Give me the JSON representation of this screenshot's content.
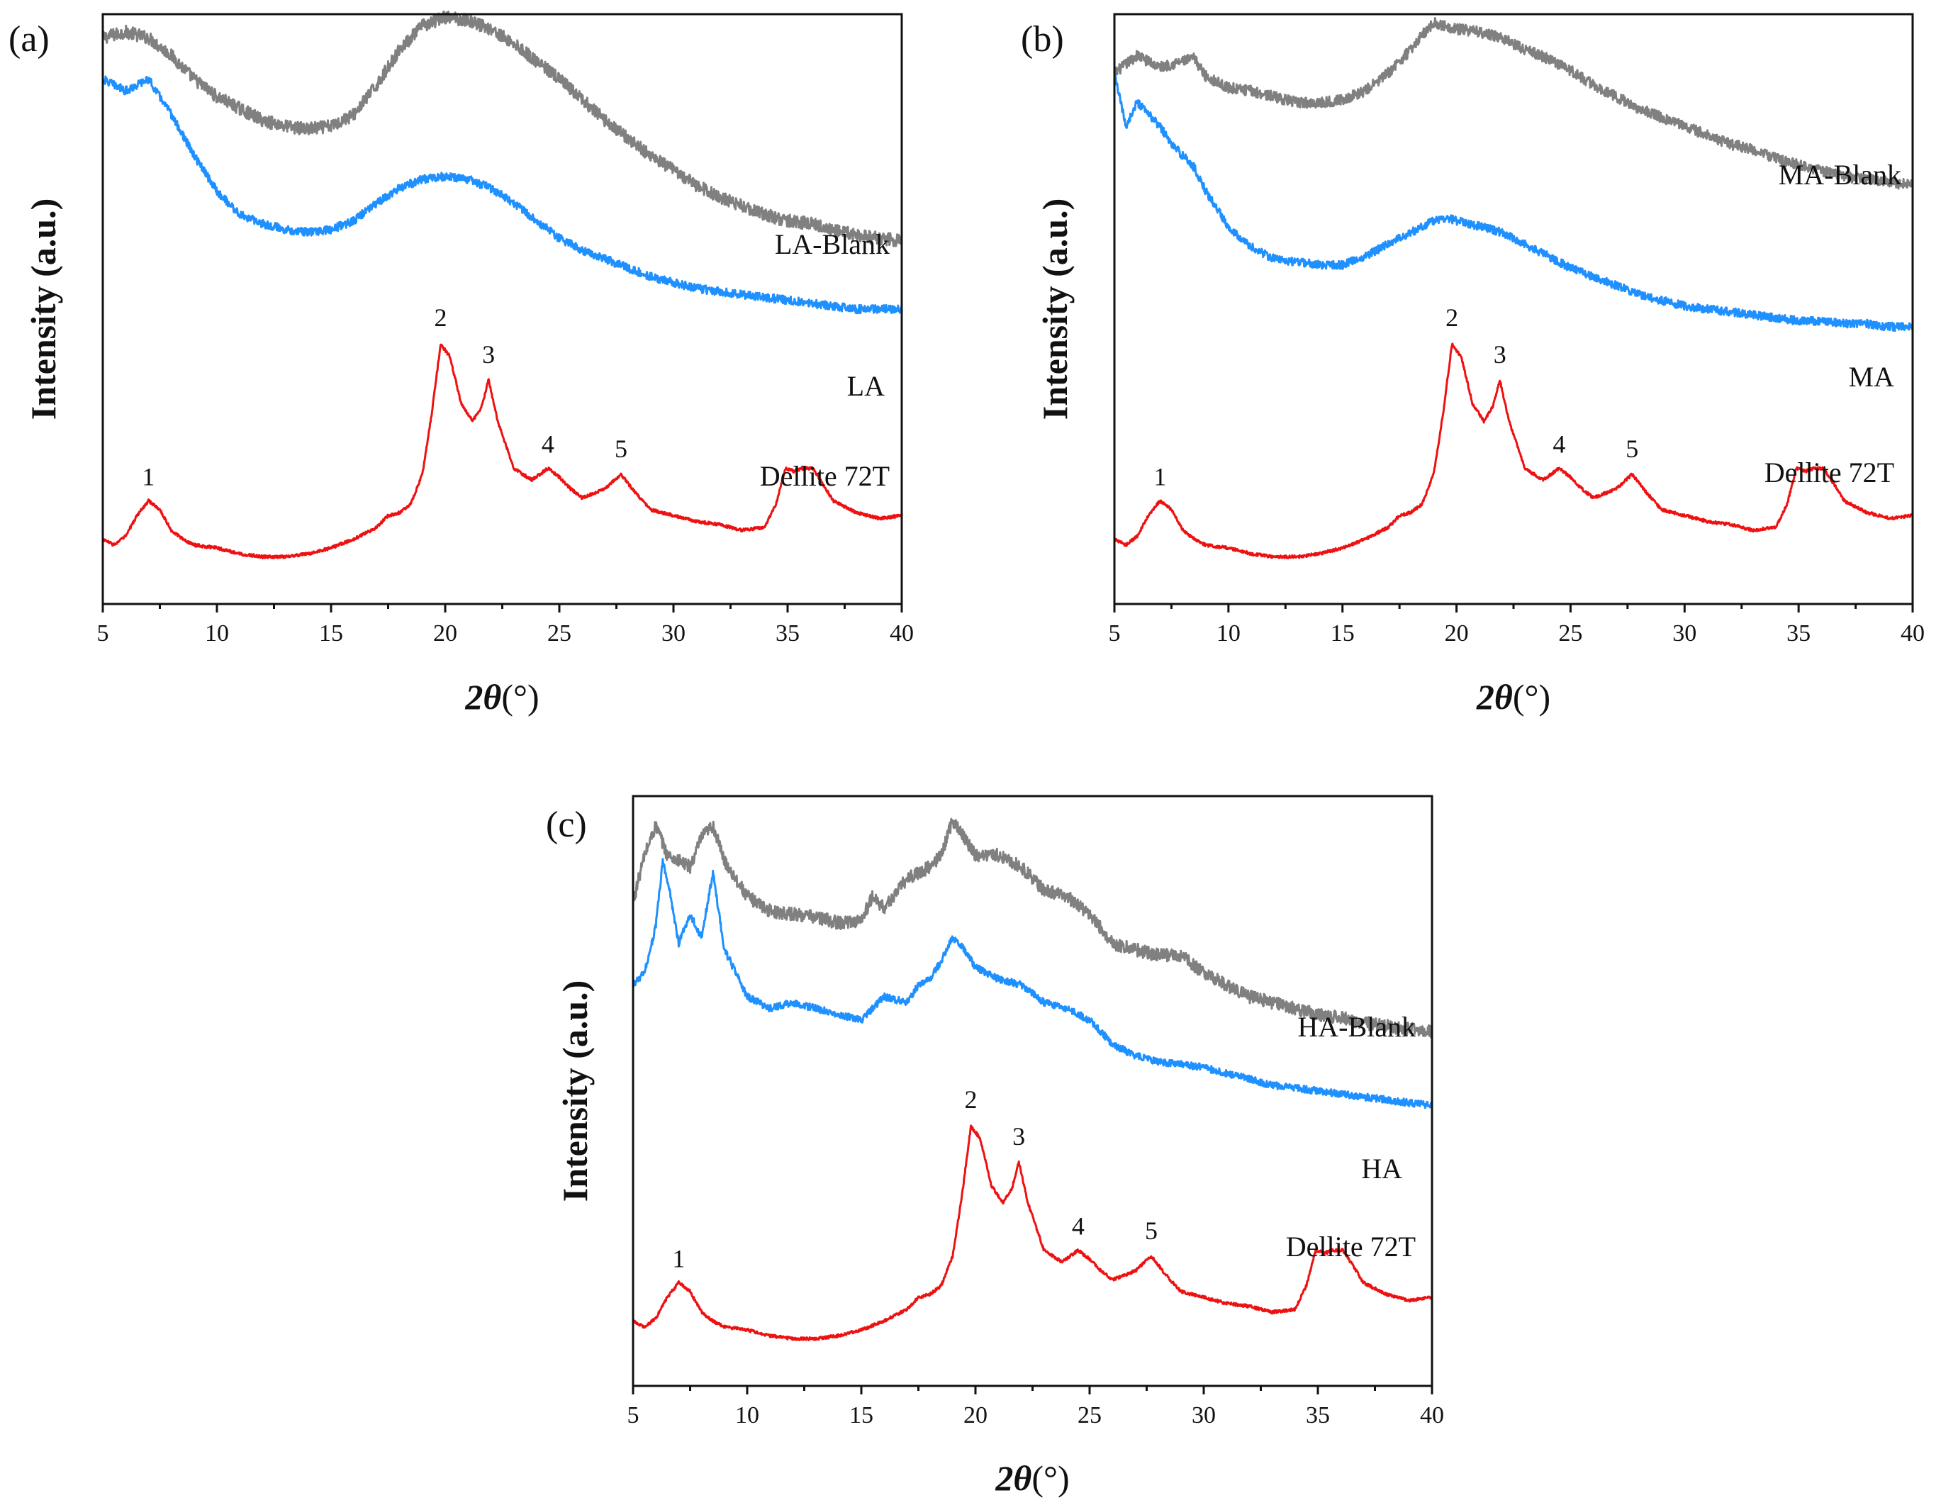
{
  "figure": {
    "colors": {
      "blank": "#808080",
      "sample": "#1E90FF",
      "reference": "#EE1111"
    }
  },
  "chart_data": [
    {
      "type": "line",
      "panel_label": "(a)",
      "xlabel_main": "2θ",
      "xlabel_unit": "(°)",
      "ylabel": "Intensity (a.u.)",
      "xlim": [
        5,
        40
      ],
      "ylim": [
        0,
        10
      ],
      "xticks": [
        5,
        10,
        15,
        20,
        25,
        30,
        35,
        40
      ],
      "series": [
        {
          "name": "LA-Blank",
          "color_key": "blank",
          "noise": 0.22,
          "x": [
            5,
            6,
            7,
            8,
            9,
            10,
            11,
            12,
            13,
            14,
            15,
            16,
            17,
            18,
            19,
            20,
            21,
            22,
            23,
            24,
            25,
            26,
            27,
            28,
            29,
            30,
            31,
            32,
            33,
            34,
            35,
            36,
            37,
            38,
            39,
            40
          ],
          "y": [
            9.6,
            9.7,
            9.6,
            9.3,
            8.9,
            8.6,
            8.4,
            8.2,
            8.1,
            8.05,
            8.1,
            8.3,
            8.8,
            9.4,
            9.8,
            9.95,
            9.9,
            9.75,
            9.5,
            9.2,
            8.9,
            8.55,
            8.2,
            7.9,
            7.6,
            7.35,
            7.1,
            6.9,
            6.75,
            6.6,
            6.5,
            6.45,
            6.35,
            6.25,
            6.2,
            6.15
          ]
        },
        {
          "name": "LA",
          "color_key": "sample",
          "noise": 0.14,
          "x": [
            5,
            6,
            7,
            8,
            9,
            10,
            11,
            12,
            13,
            14,
            15,
            16,
            17,
            18,
            19,
            20,
            21,
            22,
            23,
            24,
            25,
            26,
            27,
            28,
            29,
            30,
            31,
            32,
            33,
            34,
            35,
            36,
            37,
            38,
            39,
            40
          ],
          "y": [
            8.9,
            8.7,
            8.9,
            8.3,
            7.6,
            7.0,
            6.6,
            6.45,
            6.35,
            6.3,
            6.35,
            6.5,
            6.8,
            7.05,
            7.2,
            7.25,
            7.2,
            7.05,
            6.8,
            6.5,
            6.2,
            6.0,
            5.85,
            5.7,
            5.55,
            5.45,
            5.35,
            5.3,
            5.25,
            5.2,
            5.15,
            5.1,
            5.05,
            5.0,
            5.0,
            5.0
          ]
        },
        {
          "name": "Dellite 72T",
          "color_key": "reference",
          "noise": 0.05,
          "x": [
            5,
            5.5,
            6,
            6.5,
            7,
            7.5,
            8,
            8.5,
            9,
            10,
            11,
            12,
            13,
            14,
            15,
            16,
            17,
            17.5,
            18,
            18.5,
            19,
            19.4,
            19.8,
            20.2,
            20.7,
            21.2,
            21.6,
            21.9,
            22.3,
            23,
            23.8,
            24.5,
            25,
            25.5,
            26,
            27,
            27.7,
            28.3,
            29,
            30,
            31,
            32,
            33,
            34,
            34.5,
            34.9,
            35.3,
            35.7,
            36.1,
            36.6,
            37,
            38,
            39,
            40
          ],
          "y": [
            1.1,
            1.0,
            1.15,
            1.5,
            1.75,
            1.6,
            1.25,
            1.1,
            1.0,
            0.95,
            0.85,
            0.8,
            0.8,
            0.85,
            0.95,
            1.1,
            1.3,
            1.5,
            1.55,
            1.7,
            2.2,
            3.2,
            4.4,
            4.2,
            3.4,
            3.1,
            3.35,
            3.8,
            3.1,
            2.3,
            2.1,
            2.3,
            2.15,
            1.95,
            1.8,
            1.95,
            2.2,
            1.9,
            1.6,
            1.5,
            1.4,
            1.35,
            1.25,
            1.3,
            1.7,
            2.3,
            2.25,
            2.3,
            2.3,
            2.0,
            1.75,
            1.55,
            1.45,
            1.5
          ]
        }
      ],
      "annotations": [
        {
          "text": "LA-Blank",
          "series": "LA-Blank"
        },
        {
          "text": "LA",
          "series": "LA"
        },
        {
          "text": "Dellite 72T",
          "series": "Dellite 72T"
        },
        {
          "text": "1",
          "x": 7.0
        },
        {
          "text": "2",
          "x": 19.8
        },
        {
          "text": "3",
          "x": 21.9
        },
        {
          "text": "4",
          "x": 24.5
        },
        {
          "text": "5",
          "x": 27.7
        }
      ]
    },
    {
      "type": "line",
      "panel_label": "(b)",
      "xlabel_main": "2θ",
      "xlabel_unit": "(°)",
      "ylabel": "Intensity (a.u.)",
      "xlim": [
        5,
        40
      ],
      "ylim": [
        0,
        10
      ],
      "xticks": [
        5,
        10,
        15,
        20,
        25,
        30,
        35,
        40
      ],
      "series": [
        {
          "name": "MA-Blank",
          "color_key": "blank",
          "noise": 0.18,
          "x": [
            5,
            6,
            7,
            8,
            8.5,
            9,
            10,
            11,
            12,
            13,
            14,
            15,
            16,
            17,
            18,
            18.5,
            19,
            20,
            21,
            22,
            23,
            24,
            25,
            26,
            27,
            28,
            29,
            30,
            31,
            32,
            33,
            34,
            35,
            36,
            37,
            38,
            39,
            40
          ],
          "y": [
            9.0,
            9.3,
            9.1,
            9.2,
            9.25,
            8.95,
            8.75,
            8.7,
            8.6,
            8.5,
            8.5,
            8.55,
            8.7,
            9.0,
            9.4,
            9.65,
            9.85,
            9.75,
            9.7,
            9.6,
            9.4,
            9.25,
            9.05,
            8.8,
            8.6,
            8.4,
            8.25,
            8.1,
            7.95,
            7.8,
            7.7,
            7.55,
            7.45,
            7.35,
            7.25,
            7.2,
            7.15,
            7.1
          ]
        },
        {
          "name": "MA",
          "color_key": "sample",
          "noise": 0.14,
          "x": [
            5,
            5.5,
            6,
            6.5,
            7,
            7.5,
            8,
            8.5,
            9,
            10,
            11,
            12,
            13,
            14,
            15,
            16,
            17,
            18,
            19,
            19.5,
            20,
            21,
            22,
            23,
            24,
            25,
            26,
            27,
            28,
            29,
            30,
            31,
            32,
            33,
            34,
            35,
            36,
            37,
            38,
            39,
            40
          ],
          "y": [
            9.0,
            8.1,
            8.5,
            8.3,
            8.1,
            7.8,
            7.6,
            7.4,
            7.0,
            6.4,
            6.05,
            5.85,
            5.8,
            5.75,
            5.75,
            5.9,
            6.1,
            6.3,
            6.5,
            6.55,
            6.5,
            6.4,
            6.3,
            6.1,
            5.9,
            5.7,
            5.55,
            5.4,
            5.25,
            5.15,
            5.05,
            5.0,
            4.95,
            4.9,
            4.85,
            4.8,
            4.8,
            4.75,
            4.75,
            4.7,
            4.7
          ]
        },
        {
          "name": "Dellite 72T",
          "color_key": "reference",
          "noise": 0.05,
          "x": [
            5,
            5.5,
            6,
            6.5,
            7,
            7.5,
            8,
            8.5,
            9,
            10,
            11,
            12,
            13,
            14,
            15,
            16,
            17,
            17.5,
            18,
            18.5,
            19,
            19.4,
            19.8,
            20.2,
            20.7,
            21.2,
            21.6,
            21.9,
            22.3,
            23,
            23.8,
            24.5,
            25,
            25.5,
            26,
            27,
            27.7,
            28.3,
            29,
            30,
            31,
            32,
            33,
            34,
            34.5,
            34.9,
            35.3,
            35.7,
            36.1,
            36.6,
            37,
            38,
            39,
            40
          ],
          "y": [
            1.1,
            1.0,
            1.15,
            1.5,
            1.75,
            1.6,
            1.25,
            1.1,
            1.0,
            0.95,
            0.85,
            0.8,
            0.8,
            0.85,
            0.95,
            1.1,
            1.3,
            1.5,
            1.55,
            1.7,
            2.2,
            3.2,
            4.4,
            4.2,
            3.4,
            3.1,
            3.35,
            3.8,
            3.1,
            2.3,
            2.1,
            2.3,
            2.15,
            1.95,
            1.8,
            1.95,
            2.2,
            1.9,
            1.6,
            1.5,
            1.4,
            1.35,
            1.25,
            1.3,
            1.7,
            2.3,
            2.25,
            2.3,
            2.3,
            2.0,
            1.75,
            1.55,
            1.45,
            1.5
          ]
        }
      ],
      "annotations": [
        {
          "text": "MA-Blank",
          "series": "MA-Blank"
        },
        {
          "text": "MA",
          "series": "MA"
        },
        {
          "text": "Dellite 72T",
          "series": "Dellite 72T"
        },
        {
          "text": "1",
          "x": 7.0
        },
        {
          "text": "2",
          "x": 19.8
        },
        {
          "text": "3",
          "x": 21.9
        },
        {
          "text": "4",
          "x": 24.5
        },
        {
          "text": "5",
          "x": 27.7
        }
      ]
    },
    {
      "type": "line",
      "panel_label": "(c)",
      "xlabel_main": "2θ",
      "xlabel_unit": "(°)",
      "ylabel": "Intensity (a.u.)",
      "xlim": [
        5,
        40
      ],
      "ylim": [
        0,
        10
      ],
      "xticks": [
        5,
        10,
        15,
        20,
        25,
        30,
        35,
        40
      ],
      "series": [
        {
          "name": "HA-Blank",
          "color_key": "blank",
          "noise": 0.22,
          "x": [
            5,
            5.5,
            6,
            6.5,
            7,
            7.5,
            8,
            8.5,
            9,
            10,
            11,
            12,
            13,
            14,
            15,
            15.5,
            16,
            17,
            18,
            18.5,
            19,
            19.5,
            20,
            21,
            22,
            23,
            24,
            25,
            26,
            27,
            28,
            29,
            30,
            31,
            32,
            33,
            34,
            35,
            36,
            37,
            38,
            39,
            40
          ],
          "y": [
            8.2,
            9.0,
            9.5,
            9.0,
            8.9,
            8.8,
            9.3,
            9.5,
            8.9,
            8.3,
            8.05,
            8.0,
            7.95,
            7.85,
            7.9,
            8.3,
            8.1,
            8.6,
            8.8,
            9.0,
            9.6,
            9.3,
            9.0,
            9.0,
            8.8,
            8.4,
            8.3,
            8.0,
            7.5,
            7.4,
            7.3,
            7.3,
            7.0,
            6.8,
            6.6,
            6.5,
            6.4,
            6.3,
            6.25,
            6.15,
            6.1,
            6.05,
            6.0
          ]
        },
        {
          "name": "HA",
          "color_key": "sample",
          "noise": 0.12,
          "x": [
            5,
            5.5,
            6,
            6.3,
            6.6,
            7,
            7.5,
            8,
            8.5,
            9,
            9.5,
            10,
            11,
            12,
            13,
            14,
            15,
            16,
            17,
            17.5,
            18,
            18.5,
            19,
            19.5,
            20,
            21,
            22,
            23,
            24,
            25,
            26,
            27,
            28,
            29,
            30,
            31,
            32,
            33,
            34,
            35,
            36,
            37,
            38,
            39,
            40
          ],
          "y": [
            6.8,
            7.0,
            7.8,
            8.9,
            8.4,
            7.5,
            8.0,
            7.6,
            8.7,
            7.4,
            7.0,
            6.6,
            6.4,
            6.5,
            6.4,
            6.3,
            6.2,
            6.6,
            6.5,
            6.8,
            6.9,
            7.2,
            7.6,
            7.4,
            7.1,
            6.9,
            6.8,
            6.5,
            6.4,
            6.2,
            5.8,
            5.6,
            5.5,
            5.45,
            5.4,
            5.3,
            5.2,
            5.1,
            5.05,
            5.0,
            4.95,
            4.9,
            4.85,
            4.8,
            4.75
          ]
        },
        {
          "name": "Dellite 72T",
          "color_key": "reference",
          "noise": 0.05,
          "x": [
            5,
            5.5,
            6,
            6.5,
            7,
            7.5,
            8,
            8.5,
            9,
            10,
            11,
            12,
            13,
            14,
            15,
            16,
            17,
            17.5,
            18,
            18.5,
            19,
            19.4,
            19.8,
            20.2,
            20.7,
            21.2,
            21.6,
            21.9,
            22.3,
            23,
            23.8,
            24.5,
            25,
            25.5,
            26,
            27,
            27.7,
            28.3,
            29,
            30,
            31,
            32,
            33,
            34,
            34.5,
            34.9,
            35.3,
            35.7,
            36.1,
            36.6,
            37,
            38,
            39,
            40
          ],
          "y": [
            1.1,
            1.0,
            1.15,
            1.5,
            1.75,
            1.6,
            1.25,
            1.1,
            1.0,
            0.95,
            0.85,
            0.8,
            0.8,
            0.85,
            0.95,
            1.1,
            1.3,
            1.5,
            1.55,
            1.7,
            2.2,
            3.2,
            4.4,
            4.2,
            3.4,
            3.1,
            3.35,
            3.8,
            3.1,
            2.3,
            2.1,
            2.3,
            2.15,
            1.95,
            1.8,
            1.95,
            2.2,
            1.9,
            1.6,
            1.5,
            1.4,
            1.35,
            1.25,
            1.3,
            1.7,
            2.3,
            2.25,
            2.3,
            2.3,
            2.0,
            1.75,
            1.55,
            1.45,
            1.5
          ]
        }
      ],
      "annotations": [
        {
          "text": "HA-Blank",
          "series": "HA-Blank"
        },
        {
          "text": "HA",
          "series": "HA"
        },
        {
          "text": "Dellite 72T",
          "series": "Dellite 72T"
        },
        {
          "text": "1",
          "x": 7.0
        },
        {
          "text": "2",
          "x": 19.8
        },
        {
          "text": "3",
          "x": 21.9
        },
        {
          "text": "4",
          "x": 24.5
        },
        {
          "text": "5",
          "x": 27.7
        }
      ]
    }
  ]
}
